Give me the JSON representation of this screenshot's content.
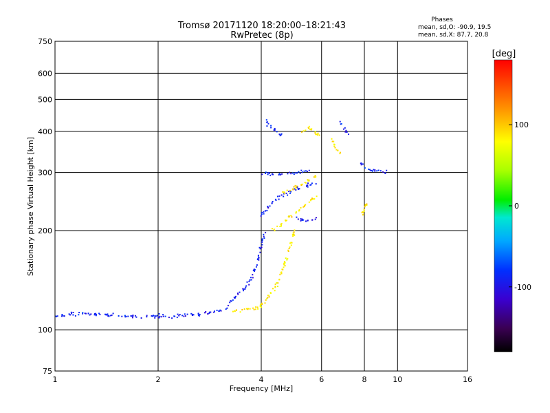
{
  "chart_data": {
    "type": "scatter",
    "title": "Tromsø 20171120 18:20:00–18:21:43",
    "subtitle": "RwPretec (8p)",
    "xlabel": "Frequency [MHz]",
    "ylabel": "Stationary phase Virtual Height [km]",
    "x_scale": "log",
    "y_scale": "log",
    "xlim": [
      1,
      16
    ],
    "ylim": [
      75,
      750
    ],
    "grid": true,
    "x_ticks": [
      1,
      2,
      4,
      6,
      8,
      10,
      16
    ],
    "x_tick_labels": [
      "1",
      "2",
      "4",
      "6",
      "8",
      "10",
      "16"
    ],
    "y_ticks": [
      75,
      100,
      200,
      300,
      400,
      500,
      600,
      750
    ],
    "y_tick_labels": [
      "75",
      "100",
      "200",
      "300",
      "400",
      "500",
      "600",
      "750"
    ],
    "stats": {
      "heading": "Phases",
      "line1": "mean, sd,O: -90.9, 19.5",
      "line2": "mean, sd,X:  87.7, 20.8"
    },
    "colorbar": {
      "unit_label": "[deg]",
      "range": [
        -180,
        180
      ],
      "tick_values": [
        100,
        0,
        -100
      ],
      "tick_labels": [
        "100",
        "0",
        "-100"
      ]
    },
    "series": [
      {
        "mode": "O",
        "phase_mean": -90.9,
        "phase_sd": 19.5,
        "traces": [
          {
            "x": [
              1.0,
              1.08,
              1.2,
              1.4,
              1.6,
              1.8,
              2.0,
              2.2,
              2.5,
              2.8,
              3.0,
              3.2
            ],
            "y": [
              110,
              111,
              112,
              111,
              110,
              110,
              110,
              110,
              111,
              112,
              114,
              118
            ]
          },
          {
            "x": [
              3.2,
              3.4,
              3.6,
              3.75,
              3.9,
              4.0,
              4.1
            ],
            "y": [
              120,
              127,
              135,
              145,
              160,
              180,
              200
            ]
          },
          {
            "x": [
              3.95,
              4.1,
              4.3,
              4.6,
              5.0,
              5.5,
              5.8
            ],
            "y": [
              220,
              230,
              240,
              255,
              265,
              275,
              280
            ]
          },
          {
            "x": [
              4.05,
              4.2,
              4.5,
              4.8,
              5.2,
              5.6
            ],
            "y": [
              300,
              298,
              296,
              297,
              300,
              305
            ]
          },
          {
            "x": [
              4.1,
              4.2,
              4.4,
              4.6
            ],
            "y": [
              440,
              420,
              400,
              390
            ]
          },
          {
            "x": [
              5.0,
              5.3,
              5.6,
              5.8
            ],
            "y": [
              220,
              215,
              215,
              218
            ]
          },
          {
            "x": [
              6.8,
              7.0,
              7.2
            ],
            "y": [
              425,
              410,
              390
            ]
          },
          {
            "x": [
              7.8,
              8.0,
              8.5,
              9.0,
              9.4
            ],
            "y": [
              320,
              310,
              305,
              300,
              300
            ]
          }
        ]
      },
      {
        "mode": "X",
        "phase_mean": 87.7,
        "phase_sd": 20.8,
        "traces": [
          {
            "x": [
              3.3,
              3.5,
              3.7,
              3.9,
              4.0,
              4.2,
              4.4,
              4.6,
              4.8,
              5.0
            ],
            "y": [
              114,
              115,
              116,
              116,
              118,
              125,
              135,
              150,
              170,
              200
            ]
          },
          {
            "x": [
              4.3,
              4.6,
              5.0,
              5.4,
              5.8
            ],
            "y": [
              200,
              210,
              225,
              240,
              255
            ]
          },
          {
            "x": [
              4.6,
              5.0,
              5.4,
              5.8
            ],
            "y": [
              260,
              270,
              280,
              295
            ]
          },
          {
            "x": [
              5.2,
              5.5,
              5.8,
              6.0
            ],
            "y": [
              400,
              410,
              395,
              380
            ]
          },
          {
            "x": [
              6.4,
              6.6,
              6.8
            ],
            "y": [
              380,
              360,
              340
            ]
          },
          {
            "x": [
              7.8,
              8.0,
              8.2
            ],
            "y": [
              220,
              235,
              245
            ]
          }
        ]
      }
    ]
  }
}
